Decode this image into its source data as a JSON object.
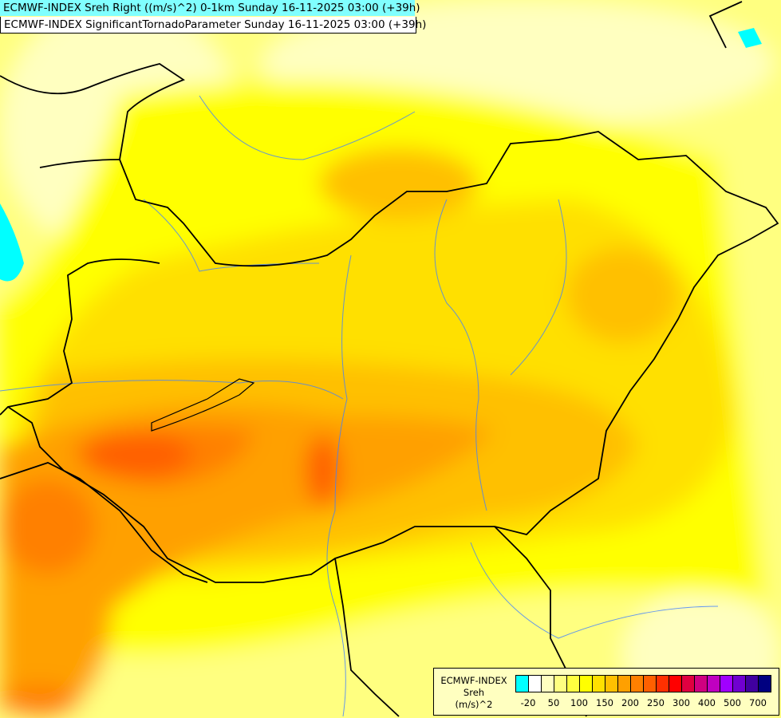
{
  "header": {
    "line1": "ECMWF-INDEX Sreh Right ((m/s)^2) 0-1km Sunday 16-11-2025 03:00 (+39h)",
    "line2": "ECMWF-INDEX SignificantTornadoParameter Sunday 16-11-2025 03:00 (+39h)"
  },
  "legend": {
    "title": "ECMWF-INDEX",
    "variable": "Sreh",
    "unit": "(m/s)^2",
    "colors": [
      "#00ffff",
      "#ffffff",
      "#ffffc0",
      "#ffff80",
      "#ffff40",
      "#ffff00",
      "#ffe000",
      "#ffc000",
      "#ffa000",
      "#ff8000",
      "#ff6000",
      "#ff3000",
      "#ff0000",
      "#e00040",
      "#d00080",
      "#c000c0",
      "#a000ff",
      "#7000d0",
      "#4000a0",
      "#000080"
    ],
    "labels": [
      "-20",
      "50",
      "100",
      "150",
      "200",
      "250",
      "300",
      "400",
      "500",
      "700"
    ]
  },
  "map": {
    "palette": {
      "light": "#ffffc0",
      "pale": "#ffff80",
      "yellow": "#ffff00",
      "gold": "#ffe000",
      "amber": "#ffc000",
      "orange": "#ffa000",
      "dorange": "#ff8000",
      "red": "#ff6000",
      "cyan": "#00ffff",
      "border": "#000000",
      "river": "#4080ff"
    }
  }
}
